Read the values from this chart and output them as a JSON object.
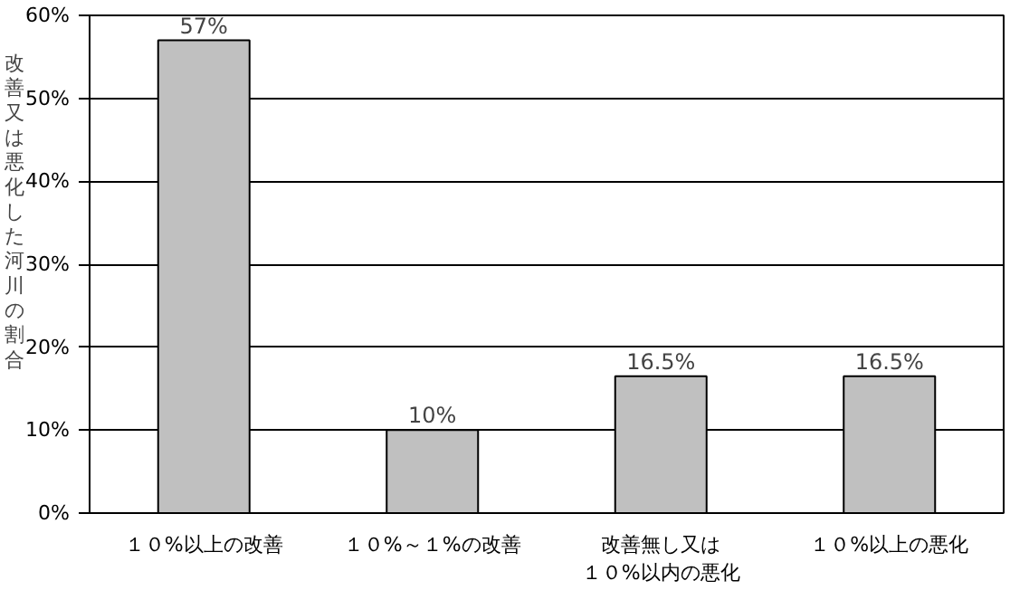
{
  "chart_data": {
    "type": "bar",
    "ylabel": "改善又は悪化した河川の割合",
    "categories": [
      "１０%以上の改善",
      "１０%～１%の改善",
      "改善無し又は１０%以内の悪化",
      "１０%以上の悪化"
    ],
    "values": [
      57,
      10,
      16.5,
      16.5
    ],
    "color": "#c0c0c0",
    "value_labels": [
      "57%",
      "10%",
      "16.5%",
      "16.5%"
    ],
    "ylim": [
      0,
      60
    ],
    "yticks": [
      {
        "value": 0,
        "label": "0%"
      },
      {
        "value": 10,
        "label": "10%"
      },
      {
        "value": 20,
        "label": "20%"
      },
      {
        "value": 30,
        "label": "30%"
      },
      {
        "value": 40,
        "label": "40%"
      },
      {
        "value": 50,
        "label": "50%"
      },
      {
        "value": 60,
        "label": "60%"
      }
    ],
    "grid": "y"
  }
}
